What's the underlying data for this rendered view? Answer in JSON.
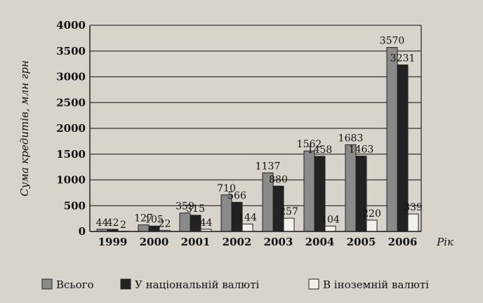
{
  "chart_data": {
    "type": "bar",
    "categories": [
      "1999",
      "2000",
      "2001",
      "2002",
      "2003",
      "2004",
      "2005",
      "2006"
    ],
    "series": [
      {
        "name": "Всього",
        "values": [
          44,
          127,
          359,
          710,
          1137,
          1562,
          1683,
          3570
        ],
        "color": "#8a8a8a"
      },
      {
        "name": "У національній валюті",
        "values": [
          42,
          105,
          315,
          566,
          880,
          1458,
          1463,
          3231
        ],
        "color": "#222222"
      },
      {
        "name": "В іноземній валюті",
        "values": [
          2,
          22,
          44,
          144,
          257,
          104,
          220,
          339
        ],
        "color": "#f3f1ec"
      }
    ],
    "xlabel": "Рік",
    "ylabel": "Сума кредитів, млн грн",
    "ylim": [
      0,
      4000
    ],
    "yticks": [
      0,
      500,
      1000,
      1500,
      2000,
      2500,
      3000,
      3500,
      4000
    ],
    "grid": true,
    "legend": "bottom"
  }
}
